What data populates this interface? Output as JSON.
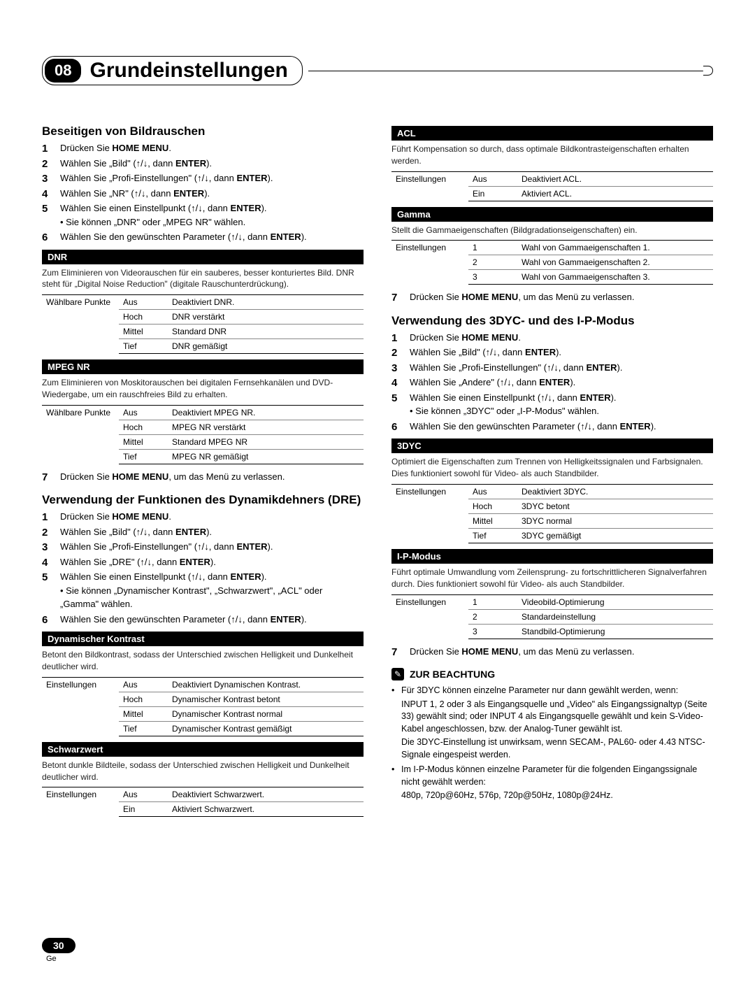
{
  "chapter": {
    "number": "08",
    "title": "Grundeinstellungen"
  },
  "left": {
    "s1": {
      "title": "Beseitigen von Bildrauschen",
      "steps": [
        "Drücken Sie <b>HOME MENU</b>.",
        "Wählen Sie „Bild\" (↑/↓, dann <b>ENTER</b>).",
        "Wählen Sie „Profi-Einstellungen\" (↑/↓, dann <b>ENTER</b>).",
        "Wählen Sie „NR\" (↑/↓, dann <b>ENTER</b>).",
        "Wählen Sie einen Einstellpunkt (↑/↓, dann <b>ENTER</b>).<div class=\"sub-bullet\">• Sie können „DNR\" oder „MPEG NR\" wählen.</div>",
        "Wählen Sie den gewünschten Parameter (↑/↓, dann <b>ENTER</b>)."
      ],
      "dnr": {
        "bar": "DNR",
        "desc": "Zum Eliminieren von Videorauschen für ein sauberes, besser konturiertes Bild. DNR steht für „Digital Noise Reduction\" (digitale Rauschunterdrückung).",
        "label": "Wählbare Punkte",
        "rows": [
          [
            "Aus",
            "Deaktiviert DNR."
          ],
          [
            "Hoch",
            "DNR verstärkt"
          ],
          [
            "Mittel",
            "Standard DNR"
          ],
          [
            "Tief",
            "DNR gemäßigt"
          ]
        ]
      },
      "mpeg": {
        "bar": "MPEG NR",
        "desc": "Zum Eliminieren von Moskitorauschen bei digitalen Fernsehkanälen und DVD-Wiedergabe, um ein rauschfreies Bild zu erhalten.",
        "label": "Wählbare Punkte",
        "rows": [
          [
            "Aus",
            "Deaktiviert MPEG NR."
          ],
          [
            "Hoch",
            "MPEG NR verstärkt"
          ],
          [
            "Mittel",
            "Standard MPEG NR"
          ],
          [
            "Tief",
            "MPEG NR gemäßigt"
          ]
        ]
      },
      "step7": "Drücken Sie <b>HOME MENU</b>, um das Menü zu verlassen."
    },
    "s2": {
      "title": "Verwendung der Funktionen des Dynamikdehners (DRE)",
      "steps": [
        "Drücken Sie <b>HOME MENU</b>.",
        "Wählen Sie „Bild\" (↑/↓, dann <b>ENTER</b>).",
        "Wählen Sie „Profi-Einstellungen\" (↑/↓, dann <b>ENTER</b>).",
        "Wählen Sie „DRE\" (↑/↓, dann <b>ENTER</b>).",
        "Wählen Sie einen Einstellpunkt (↑/↓, dann <b>ENTER</b>).<div class=\"sub-bullet\">• Sie können „Dynamischer Kontrast\", „Schwarzwert\", „ACL\" oder „Gamma\" wählen.</div>",
        "Wählen Sie den gewünschten Parameter (↑/↓, dann <b>ENTER</b>)."
      ],
      "dyn": {
        "bar": "Dynamischer Kontrast",
        "desc": "Betont den Bildkontrast, sodass der Unterschied zwischen Helligkeit und Dunkelheit deutlicher wird.",
        "label": "Einstellungen",
        "rows": [
          [
            "Aus",
            "Deaktiviert Dynamischen Kontrast."
          ],
          [
            "Hoch",
            "Dynamischer Kontrast betont"
          ],
          [
            "Mittel",
            "Dynamischer Kontrast normal"
          ],
          [
            "Tief",
            "Dynamischer Kontrast gemäßigt"
          ]
        ]
      },
      "schwarz": {
        "bar": "Schwarzwert",
        "desc": "Betont dunkle Bildteile, sodass der Unterschied zwischen Helligkeit und Dunkelheit deutlicher wird.",
        "label": "Einstellungen",
        "rows": [
          [
            "Aus",
            "Deaktiviert Schwarzwert."
          ],
          [
            "Ein",
            "Aktiviert Schwarzwert."
          ]
        ]
      }
    }
  },
  "right": {
    "acl": {
      "bar": "ACL",
      "desc": "Führt Kompensation so durch, dass optimale Bildkontrasteigenschaften erhalten werden.",
      "label": "Einstellungen",
      "rows": [
        [
          "Aus",
          "Deaktiviert ACL."
        ],
        [
          "Ein",
          "Aktiviert ACL."
        ]
      ]
    },
    "gamma": {
      "bar": "Gamma",
      "desc": "Stellt die Gammaeigenschaften (Bildgradationseigenschaften) ein.",
      "label": "Einstellungen",
      "rows": [
        [
          "1",
          "Wahl von Gammaeigenschaften 1."
        ],
        [
          "2",
          "Wahl von Gammaeigenschaften 2."
        ],
        [
          "3",
          "Wahl von Gammaeigenschaften 3."
        ]
      ]
    },
    "step7a": "Drücken Sie <b>HOME MENU</b>, um das Menü zu verlassen.",
    "s3": {
      "title": "Verwendung des 3DYC- und des I-P-Modus",
      "steps": [
        "Drücken Sie <b>HOME MENU</b>.",
        "Wählen Sie „Bild\" (↑/↓, dann <b>ENTER</b>).",
        "Wählen Sie „Profi-Einstellungen\" (↑/↓, dann <b>ENTER</b>).",
        "Wählen Sie „Andere\" (↑/↓, dann <b>ENTER</b>).",
        "Wählen Sie einen Einstellpunkt (↑/↓, dann <b>ENTER</b>).<div class=\"sub-bullet\">• Sie können „3DYC\" oder „I-P-Modus\" wählen.</div>",
        "Wählen Sie den gewünschten Parameter (↑/↓, dann <b>ENTER</b>)."
      ],
      "dyc": {
        "bar": "3DYC",
        "desc": "Optimiert die Eigenschaften zum Trennen von Helligkeitssignalen und Farbsignalen. Dies funktioniert sowohl für Video- als auch Standbilder.",
        "label": "Einstellungen",
        "rows": [
          [
            "Aus",
            "Deaktiviert 3DYC."
          ],
          [
            "Hoch",
            "3DYC betont"
          ],
          [
            "Mittel",
            "3DYC normal"
          ],
          [
            "Tief",
            "3DYC gemäßigt"
          ]
        ]
      },
      "ip": {
        "bar": "I-P-Modus",
        "desc": "Führt optimale Umwandlung vom Zeilensprung- zu fortschrittlicheren Signalverfahren durch. Dies funktioniert sowohl für Video- als auch Standbilder.",
        "label": "Einstellungen",
        "rows": [
          [
            "1",
            "Videobild-Optimierung"
          ],
          [
            "2",
            "Standardeinstellung"
          ],
          [
            "3",
            "Standbild-Optimierung"
          ]
        ]
      },
      "step7": "Drücken Sie <b>HOME MENU</b>, um das Menü zu verlassen."
    },
    "note": {
      "title": "ZUR BEACHTUNG",
      "items": [
        "Für 3DYC können einzelne Parameter nur dann gewählt werden, wenn:<div class=\"note-sub\">INPUT 1, 2 oder 3 als Eingangsquelle und „Video\" als Eingangssignaltyp (Seite 33) gewählt sind; oder INPUT 4 als Eingangsquelle gewählt und kein S-Video-Kabel angeschlossen, bzw. der Analog-Tuner gewählt ist.</div><div class=\"note-sub\">Die 3DYC-Einstellung ist unwirksam, wenn SECAM-, PAL60- oder 4.43 NTSC-Signale eingespeist werden.</div>",
        "Im I-P-Modus können einzelne Parameter für die folgenden Eingangssignale nicht gewählt werden:<div class=\"note-sub\">480p, 720p@60Hz, 576p, 720p@50Hz, 1080p@24Hz.</div>"
      ]
    }
  },
  "footer": {
    "page": "30",
    "lang": "Ge"
  }
}
